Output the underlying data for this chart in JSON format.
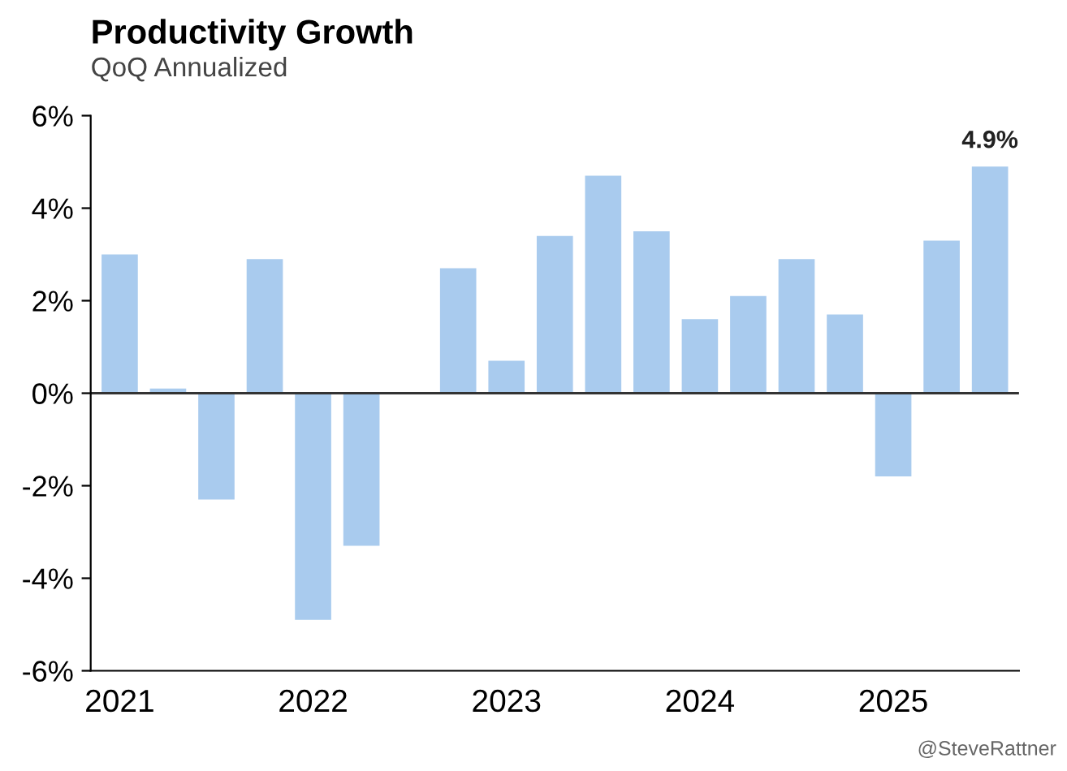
{
  "chart_data": {
    "type": "bar",
    "title": "Productivity Growth",
    "subtitle": "QoQ Annualized",
    "categories": [
      "2021",
      null,
      null,
      null,
      "2022",
      null,
      null,
      null,
      "2023",
      null,
      null,
      null,
      "2024",
      null,
      null,
      null,
      "2025",
      null,
      null
    ],
    "values": [
      3.0,
      0.1,
      -2.3,
      2.9,
      -4.9,
      -3.3,
      0,
      2.7,
      0.7,
      3.4,
      4.7,
      3.5,
      1.6,
      2.1,
      2.9,
      1.7,
      -1.8,
      3.3,
      4.9
    ],
    "value_labels": [
      null,
      null,
      null,
      null,
      null,
      null,
      null,
      null,
      null,
      null,
      null,
      null,
      null,
      null,
      null,
      null,
      null,
      null,
      "4.9%"
    ],
    "color": "#a9cbee",
    "ylim": [
      -6,
      6
    ],
    "yticks": [
      {
        "value": -6,
        "label": "-6%"
      },
      {
        "value": -4,
        "label": "-4%"
      },
      {
        "value": -2,
        "label": "-2%"
      },
      {
        "value": 0,
        "label": "0%"
      },
      {
        "value": 2,
        "label": "2%"
      },
      {
        "value": 4,
        "label": "4%"
      },
      {
        "value": 6,
        "label": "6%"
      }
    ],
    "ref_lines": [
      {
        "axis": "y",
        "value": 0,
        "label": null,
        "color": "#333333"
      }
    ],
    "annotations": [
      "@SteveRattner"
    ],
    "grid": false,
    "legend": false
  }
}
